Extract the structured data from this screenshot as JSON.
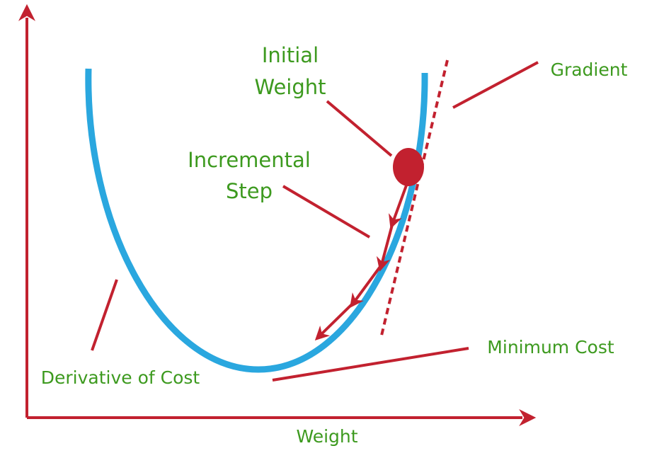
{
  "title_lines": [
    "Initial",
    "Weight"
  ],
  "step_lines": [
    "Incremental",
    "Step"
  ],
  "gradient": "Gradient",
  "minimum_cost": "Minimum Cost",
  "derivative": "Derivative of Cost",
  "x_axis": "Weight"
}
